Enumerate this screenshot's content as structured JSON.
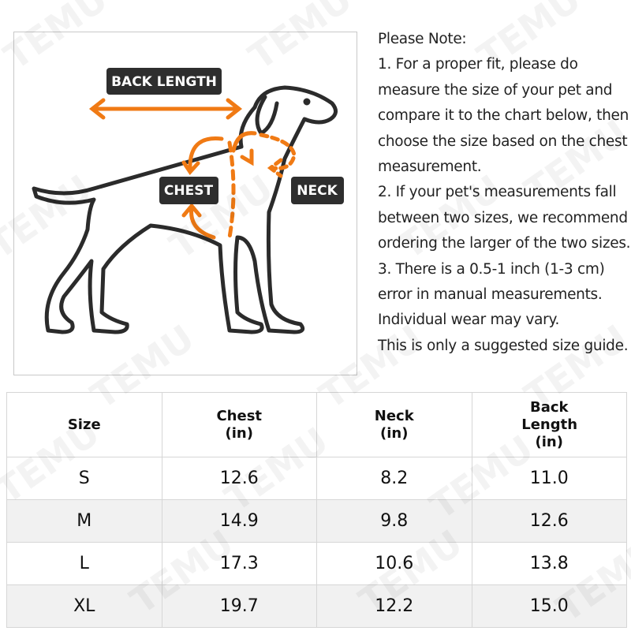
{
  "watermark": "TEMU",
  "diagram": {
    "back_length": "BACK LENGTH",
    "chest": "CHEST",
    "neck": "NECK"
  },
  "note": {
    "lines": [
      "Please Note:",
      "1. For a proper fit, please do",
      "measure the size of your pet and",
      "compare it to the chart below, then",
      "choose the size based on the chest",
      "measurement.",
      "2. If your pet's measurements fall",
      "between two sizes, we recommend",
      "ordering the larger of the two sizes.",
      "3. There is a 0.5-1 inch (1-3 cm)",
      "error in manual measurements.",
      "Individual wear may vary.",
      "This is only a suggested size guide."
    ]
  },
  "table": {
    "header": [
      "Size",
      "Chest (in)",
      "Neck (in)",
      "Back Length (in)"
    ],
    "rows": [
      [
        "S",
        "12.6",
        "8.2",
        "11.0"
      ],
      [
        "M",
        "14.9",
        "9.8",
        "12.6"
      ],
      [
        "L",
        "17.3",
        "10.6",
        "13.8"
      ],
      [
        "XL",
        "19.7",
        "12.2",
        "15.0"
      ]
    ]
  }
}
